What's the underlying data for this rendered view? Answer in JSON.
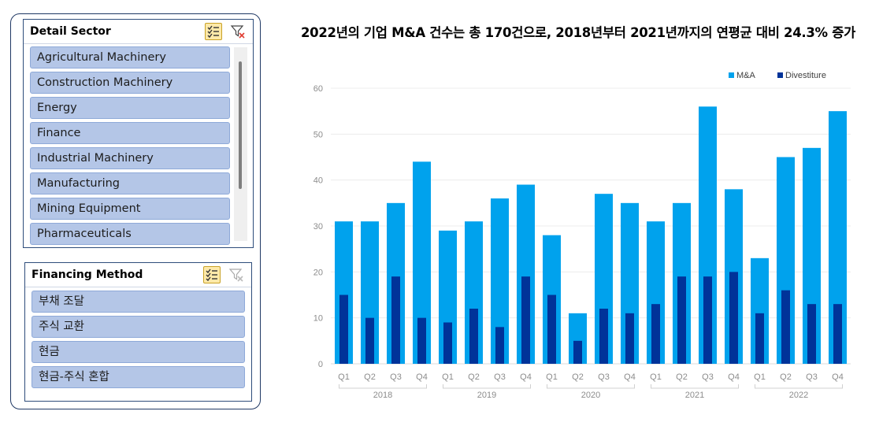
{
  "slicers": {
    "detail_sector": {
      "title": "Detail Sector",
      "items": [
        "Agricultural Machinery",
        "Construction Machinery",
        "Energy",
        "Finance",
        "Industrial Machinery",
        "Manufacturing",
        "Mining Equipment",
        "Pharmaceuticals"
      ]
    },
    "financing_method": {
      "title": "Financing Method",
      "items": [
        "부채 조달",
        "주식 교환",
        "현금",
        "현금-주식 혼합"
      ]
    }
  },
  "chart_data": {
    "type": "bar",
    "title": "2022년의 기업 M&A 건수는 총 170건으로, 2018년부터 2021년까지의 연평균 대비 24.3% 증가",
    "categories": [
      "Q1",
      "Q2",
      "Q3",
      "Q4",
      "Q1",
      "Q2",
      "Q3",
      "Q4",
      "Q1",
      "Q2",
      "Q3",
      "Q4",
      "Q1",
      "Q2",
      "Q3",
      "Q4",
      "Q1",
      "Q2",
      "Q3",
      "Q4"
    ],
    "groups": [
      {
        "label": "2018",
        "start": 0,
        "end": 3
      },
      {
        "label": "2019",
        "start": 4,
        "end": 7
      },
      {
        "label": "2020",
        "start": 8,
        "end": 11
      },
      {
        "label": "2021",
        "start": 12,
        "end": 15
      },
      {
        "label": "2022",
        "start": 16,
        "end": 19
      }
    ],
    "series": [
      {
        "name": "M&A",
        "color": "#00a2ed",
        "values": [
          31,
          31,
          35,
          44,
          29,
          31,
          36,
          39,
          28,
          11,
          37,
          35,
          31,
          35,
          56,
          38,
          23,
          45,
          47,
          55
        ]
      },
      {
        "name": "Divestiture",
        "color": "#003399",
        "values": [
          15,
          10,
          19,
          10,
          9,
          12,
          8,
          19,
          15,
          5,
          12,
          11,
          13,
          19,
          19,
          20,
          11,
          16,
          13,
          13
        ]
      }
    ],
    "ylim": [
      0,
      60
    ],
    "yticks": [
      0,
      10,
      20,
      30,
      40,
      50,
      60
    ],
    "legend_position": "top-right",
    "grid": true,
    "xlabel": "",
    "ylabel": ""
  }
}
